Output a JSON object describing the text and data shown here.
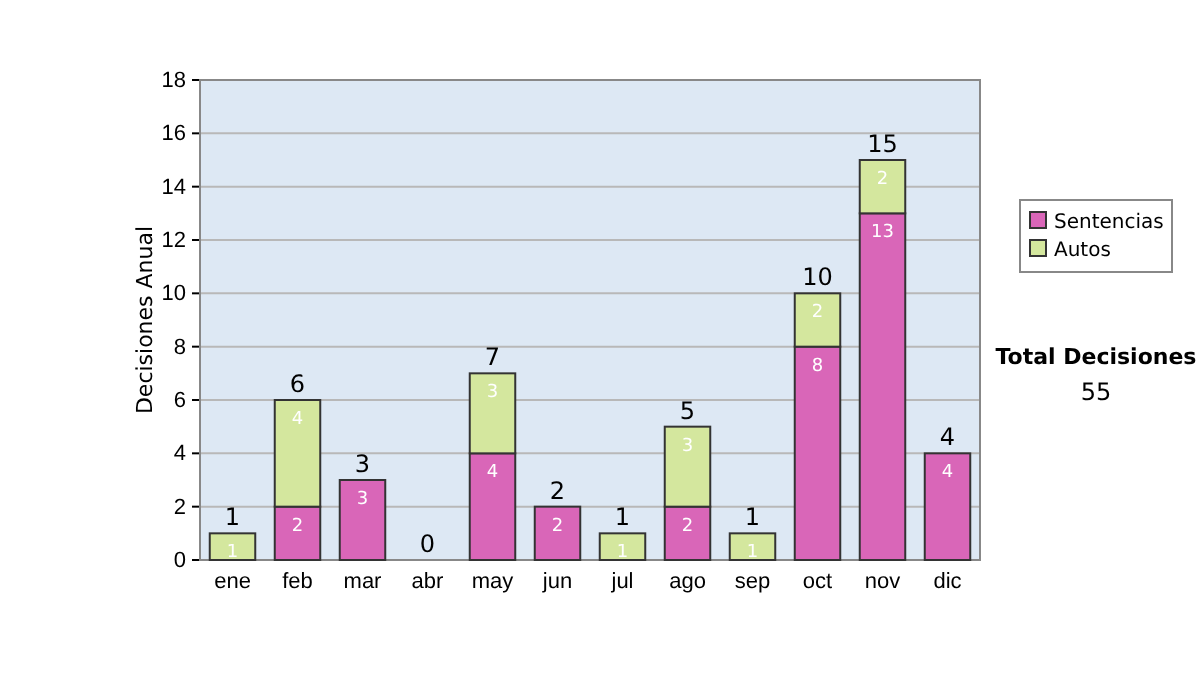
{
  "chart_data": {
    "type": "bar",
    "stacked": true,
    "ylabel": "Decisiones Anual",
    "categories": [
      "ene",
      "feb",
      "mar",
      "abr",
      "may",
      "jun",
      "jul",
      "ago",
      "sep",
      "oct",
      "nov",
      "dic"
    ],
    "series": [
      {
        "name": "Sentencias",
        "color": "#d966b8",
        "values": [
          0,
          2,
          3,
          0,
          4,
          2,
          0,
          2,
          0,
          8,
          13,
          4
        ],
        "value_labels": [
          null,
          "2",
          "3",
          null,
          "4",
          "2",
          null,
          "2",
          null,
          "8",
          "13",
          "4"
        ]
      },
      {
        "name": "Autos",
        "color": "#d4e79e",
        "values": [
          1,
          4,
          0,
          0,
          3,
          0,
          1,
          3,
          1,
          2,
          2,
          0
        ],
        "value_labels": [
          "1",
          "4",
          null,
          null,
          "3",
          null,
          "1",
          "3",
          "1",
          "2",
          "2",
          null
        ]
      }
    ],
    "ylim": [
      0,
      18
    ],
    "yticks": [
      0,
      2,
      4,
      6,
      8,
      10,
      12,
      14,
      16,
      18
    ],
    "grid": "y",
    "legend": "right",
    "totals": [
      "1",
      "6",
      "3",
      "0",
      "7",
      "2",
      "1",
      "5",
      "1",
      "10",
      "15",
      "4"
    ],
    "annotations": [
      "Total Decisiones",
      "55"
    ]
  }
}
